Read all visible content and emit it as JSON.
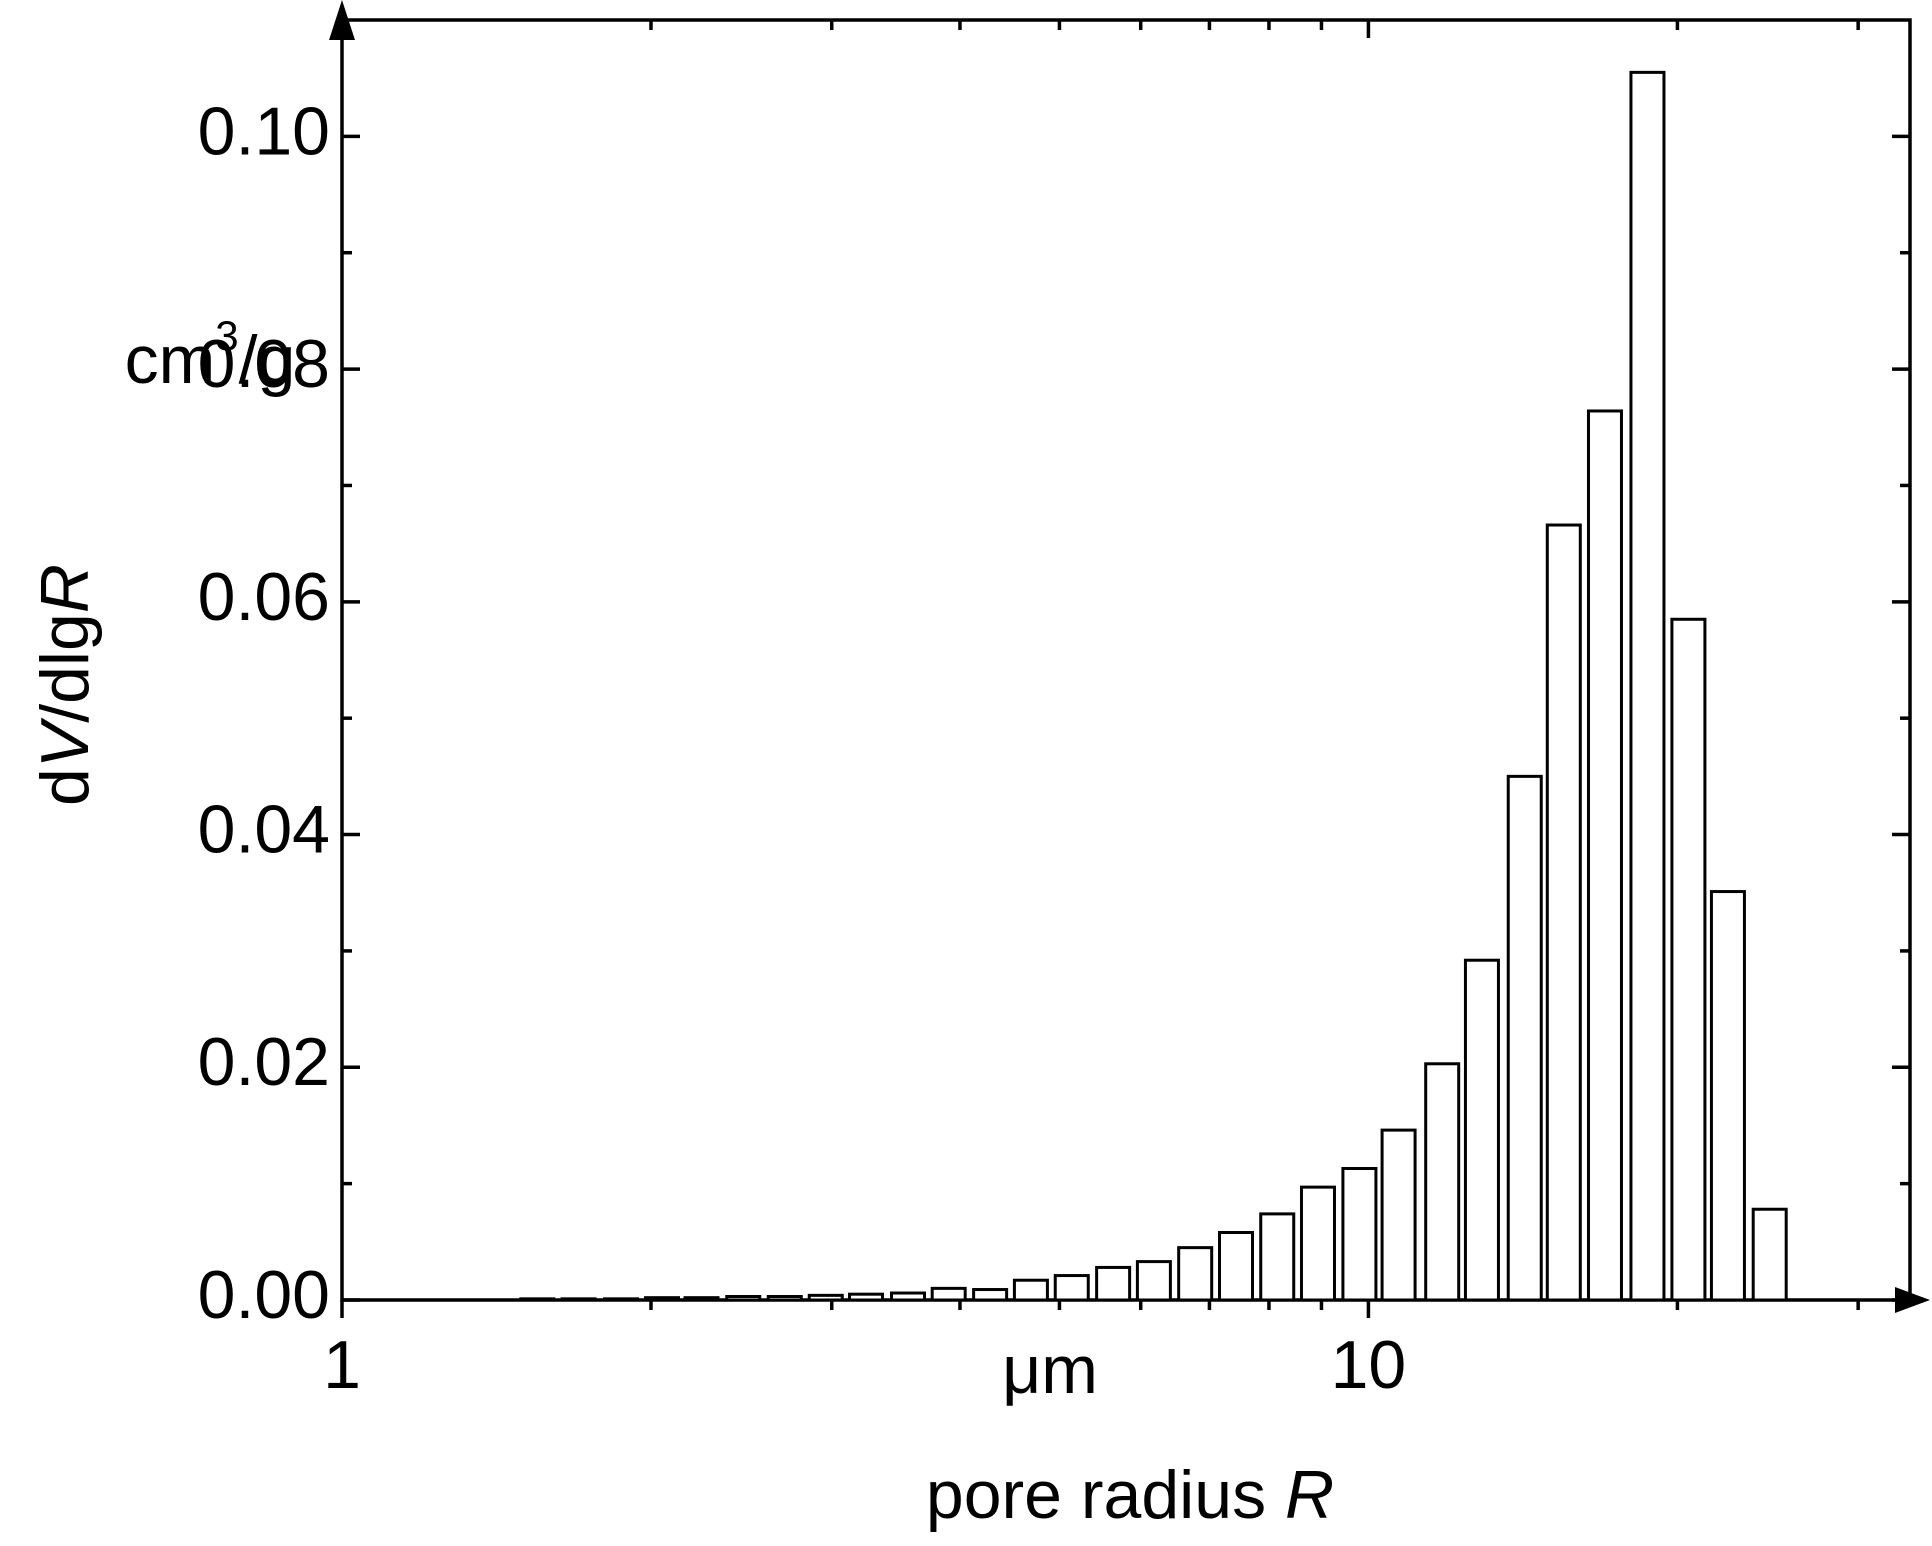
{
  "chart_data": {
    "type": "bar",
    "ylabel": [
      "d",
      "V",
      "/dlg",
      "R"
    ],
    "xlabel": [
      "pore radius ",
      "R"
    ],
    "yunit": [
      "cm",
      "3",
      "/g"
    ],
    "xunit": "μm",
    "xscale": "log",
    "x": [
      1.55,
      1.7,
      1.87,
      2.05,
      2.24,
      2.46,
      2.7,
      2.96,
      3.24,
      3.56,
      3.9,
      4.28,
      4.69,
      5.14,
      5.64,
      6.18,
      6.78,
      7.43,
      8.15,
      8.93,
      9.8,
      10.7,
      11.8,
      12.9,
      14.2,
      15.5,
      17.0,
      18.7,
      20.5,
      22.4,
      24.6
    ],
    "values": [
      0.0001,
      0.0001,
      0.0001,
      0.0002,
      0.0002,
      0.0003,
      0.0003,
      0.0004,
      0.0005,
      0.0006,
      0.001,
      0.0009,
      0.0017,
      0.0021,
      0.0028,
      0.0033,
      0.0045,
      0.0058,
      0.0074,
      0.0097,
      0.0113,
      0.0146,
      0.0203,
      0.0292,
      0.045,
      0.0666,
      0.0764,
      0.1055,
      0.0585,
      0.0351,
      0.0078
    ],
    "color": "#ffffff",
    "xlim": [
      1,
      33.7
    ],
    "xticks": [
      1,
      10
    ],
    "xminorticks": [
      2,
      3,
      4,
      5,
      6,
      7,
      8,
      9,
      20,
      30
    ],
    "ylim": [
      0,
      0.11
    ],
    "yticks": [
      {
        "value": 0,
        "label": "0.00"
      },
      {
        "value": 0.02,
        "label": "0.02"
      },
      {
        "value": 0.04,
        "label": "0.04"
      },
      {
        "value": 0.06,
        "label": "0.06"
      },
      {
        "value": 0.08,
        "label": "0.08"
      },
      {
        "value": 0.1,
        "label": "0.10"
      }
    ],
    "yminorticks": [
      0.01,
      0.03,
      0.05,
      0.07,
      0.09
    ]
  }
}
